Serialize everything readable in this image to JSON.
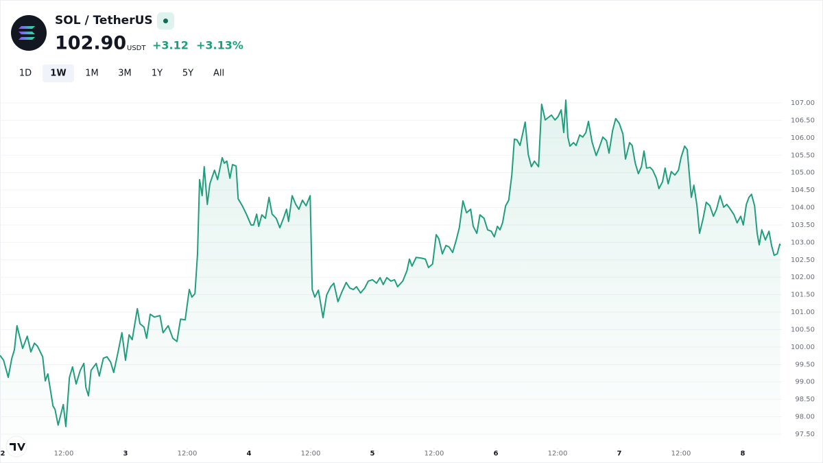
{
  "header": {
    "symbol": "SOL / TetherUS",
    "price": "102.90",
    "currency": "USDT",
    "change": "+3.12",
    "change_percent": "+3.13%"
  },
  "timeframes": [
    "1D",
    "1W",
    "1M",
    "3M",
    "1Y",
    "5Y",
    "All"
  ],
  "active_timeframe": "1W",
  "chart_data": {
    "type": "line",
    "x": [
      -0.4,
      0.3,
      1.2,
      1.9,
      2.4,
      2.9,
      4.0,
      4.9,
      5.6,
      6.3,
      6.9,
      7.9,
      8.4,
      8.9,
      9.9,
      10.3,
      10.9,
      11.9,
      12.4,
      13.1,
      13.7,
      14.4,
      15.2,
      15.9,
      16.3,
      16.8,
      17.3,
      18.3,
      18.9,
      19.7,
      20.4,
      21.1,
      21.7,
      22.5,
      23.3,
      24.0,
      24.7,
      25.3,
      26.3,
      26.8,
      27.6,
      28.1,
      28.8,
      29.6,
      30.7,
      31.3,
      32.3,
      33.2,
      34.0,
      34.7,
      35.6,
      36.4,
      36.9,
      37.5,
      38.0,
      38.4,
      38.9,
      39.3,
      39.9,
      40.4,
      41.3,
      41.9,
      42.8,
      43.2,
      43.7,
      44.3,
      44.8,
      45.5,
      45.9,
      46.7,
      47.5,
      48.4,
      48.9,
      49.5,
      49.9,
      50.5,
      51.2,
      51.9,
      52.5,
      53.3,
      54.0,
      54.7,
      55.3,
      55.7,
      56.4,
      57.1,
      57.7,
      58.4,
      59.1,
      59.9,
      60.3,
      60.8,
      61.5,
      62.4,
      63.1,
      63.9,
      64.5,
      65.3,
      66.1,
      66.9,
      67.6,
      68.3,
      68.9,
      69.7,
      70.5,
      71.2,
      72.0,
      72.8,
      73.5,
      74.1,
      74.8,
      75.6,
      76.3,
      76.9,
      77.9,
      78.7,
      79.2,
      79.7,
      80.5,
      81.5,
      82.3,
      82.9,
      83.7,
      84.4,
      84.9,
      85.6,
      86.3,
      86.9,
      87.6,
      88.3,
      88.9,
      89.6,
      90.3,
      91.1,
      91.6,
      92.3,
      92.9,
      93.7,
      94.4,
      95.1,
      95.7,
      96.3,
      96.8,
      97.3,
      97.9,
      98.5,
      99.1,
      99.6,
      100.1,
      100.7,
      101.2,
      101.7,
      102.3,
      102.9,
      103.5,
      104.3,
      104.9,
      105.6,
      106.1,
      106.8,
      107.5,
      108.1,
      108.7,
      109.2,
      109.6,
      110.0,
      110.4,
      111.1,
      111.6,
      112.3,
      112.9,
      113.5,
      114.0,
      114.7,
      115.5,
      116.1,
      116.8,
      117.5,
      118.0,
      118.7,
      119.3,
      120.0,
      120.7,
      121.2,
      122.0,
      122.5,
      123.1,
      123.7,
      124.3,
      124.8,
      125.3,
      126.0,
      126.5,
      127.2,
      127.7,
      128.4,
      128.9,
      129.5,
      130.1,
      130.8,
      131.5,
      132.0,
      132.7,
      133.2,
      134.0,
      134.5,
      135.1,
      135.6,
      136.3,
      136.9,
      137.6,
      138.3,
      138.9,
      139.6,
      140.3,
      140.9,
      141.6,
      142.3,
      142.9,
      143.6,
      144.1,
      144.7,
      145.2,
      145.7,
      146.3,
      146.8,
      147.2,
      147.7,
      148.4,
      149.1,
      149.6,
      150.1,
      150.7,
      151.2,
      151.3
    ],
    "series": [
      {
        "name": "SOL / TetherUS",
        "color": "#1f9e7e",
        "values": [
          99.76,
          99.62,
          99.13,
          99.68,
          99.92,
          100.61,
          99.96,
          100.31,
          99.86,
          100.11,
          100.02,
          99.72,
          99.03,
          99.23,
          98.31,
          98.21,
          97.76,
          98.35,
          97.72,
          99.13,
          99.43,
          98.94,
          99.33,
          99.53,
          98.84,
          98.6,
          99.33,
          99.53,
          99.17,
          99.68,
          99.72,
          99.57,
          99.27,
          99.82,
          100.41,
          99.62,
          100.35,
          100.21,
          101.1,
          100.67,
          100.57,
          100.25,
          100.94,
          100.86,
          100.9,
          100.41,
          100.61,
          100.25,
          100.16,
          100.8,
          100.78,
          101.65,
          101.43,
          101.53,
          102.67,
          104.8,
          104.34,
          105.17,
          104.09,
          104.68,
          105.07,
          104.8,
          105.43,
          105.27,
          105.33,
          104.84,
          105.23,
          105.19,
          104.25,
          104.05,
          103.81,
          103.5,
          103.5,
          103.81,
          103.46,
          103.79,
          103.69,
          104.29,
          103.81,
          103.69,
          103.42,
          103.69,
          103.95,
          103.6,
          104.34,
          104.09,
          103.95,
          104.21,
          104.05,
          104.34,
          101.65,
          101.43,
          101.63,
          100.84,
          101.49,
          101.73,
          101.83,
          101.3,
          101.59,
          101.85,
          101.69,
          101.65,
          101.73,
          101.55,
          101.69,
          101.89,
          101.93,
          101.83,
          101.99,
          101.79,
          101.99,
          101.89,
          101.93,
          101.73,
          101.89,
          102.18,
          102.52,
          102.32,
          102.57,
          102.55,
          102.52,
          102.28,
          102.38,
          103.22,
          103.11,
          102.67,
          102.91,
          102.87,
          102.71,
          103.07,
          103.42,
          104.19,
          103.85,
          103.95,
          103.46,
          103.26,
          103.79,
          103.69,
          103.36,
          103.32,
          103.16,
          103.46,
          103.36,
          103.56,
          104.05,
          104.21,
          104.93,
          105.96,
          105.94,
          105.78,
          106.11,
          106.45,
          105.52,
          105.17,
          105.33,
          105.17,
          106.96,
          106.51,
          106.57,
          106.65,
          106.51,
          106.61,
          106.8,
          106.15,
          107.08,
          106.02,
          105.76,
          105.86,
          105.78,
          106.08,
          106.02,
          106.15,
          106.47,
          105.88,
          105.49,
          105.72,
          106.02,
          105.92,
          105.56,
          106.21,
          106.55,
          106.41,
          106.11,
          105.39,
          105.86,
          105.78,
          105.27,
          104.97,
          105.17,
          105.62,
          105.13,
          105.15,
          105.07,
          104.84,
          104.54,
          104.74,
          105.13,
          104.68,
          105.03,
          104.93,
          105.07,
          105.43,
          105.76,
          105.66,
          104.29,
          104.64,
          104.05,
          103.26,
          103.69,
          104.15,
          104.05,
          103.75,
          103.95,
          104.34,
          104.01,
          104.09,
          103.95,
          103.79,
          103.56,
          103.75,
          103.5,
          104.09,
          104.29,
          104.38,
          104.05,
          103.26,
          102.93,
          103.36,
          103.07,
          103.32,
          102.91,
          102.63,
          102.67,
          102.95,
          102.91
        ]
      }
    ],
    "xlim": [
      -0.4,
      151.6
    ],
    "xticks": [
      {
        "value": 0,
        "label": "2"
      },
      {
        "value": 12,
        "label": "12:00"
      },
      {
        "value": 24,
        "label": "3"
      },
      {
        "value": 36,
        "label": "12:00"
      },
      {
        "value": 48,
        "label": "4"
      },
      {
        "value": 60,
        "label": "12:00"
      },
      {
        "value": 72,
        "label": "5"
      },
      {
        "value": 84,
        "label": "12:00"
      },
      {
        "value": 96,
        "label": "6"
      },
      {
        "value": 108,
        "label": "12:00"
      },
      {
        "value": 120,
        "label": "7"
      },
      {
        "value": 132,
        "label": "12:00"
      },
      {
        "value": 144,
        "label": "8"
      }
    ],
    "ylim": [
      97.5,
      107
    ],
    "yticks": [
      {
        "value": 97.5,
        "label": "97.50"
      },
      {
        "value": 98,
        "label": "98.00"
      },
      {
        "value": 98.5,
        "label": "98.50"
      },
      {
        "value": 99,
        "label": "99.00"
      },
      {
        "value": 99.5,
        "label": "99.50"
      },
      {
        "value": 100,
        "label": "100.00"
      },
      {
        "value": 100.5,
        "label": "100.50"
      },
      {
        "value": 101,
        "label": "101.00"
      },
      {
        "value": 101.5,
        "label": "101.50"
      },
      {
        "value": 102,
        "label": "102.00"
      },
      {
        "value": 102.5,
        "label": "102.50"
      },
      {
        "value": 103,
        "label": "103.00"
      },
      {
        "value": 103.5,
        "label": "103.50"
      },
      {
        "value": 104,
        "label": "104.00"
      },
      {
        "value": 104.5,
        "label": "104.50"
      },
      {
        "value": 105,
        "label": "105.00"
      },
      {
        "value": 105.5,
        "label": "105.50"
      },
      {
        "value": 106,
        "label": "106.00"
      },
      {
        "value": 106.5,
        "label": "106.50"
      },
      {
        "value": 107,
        "label": "107.00"
      }
    ],
    "grid": true
  }
}
